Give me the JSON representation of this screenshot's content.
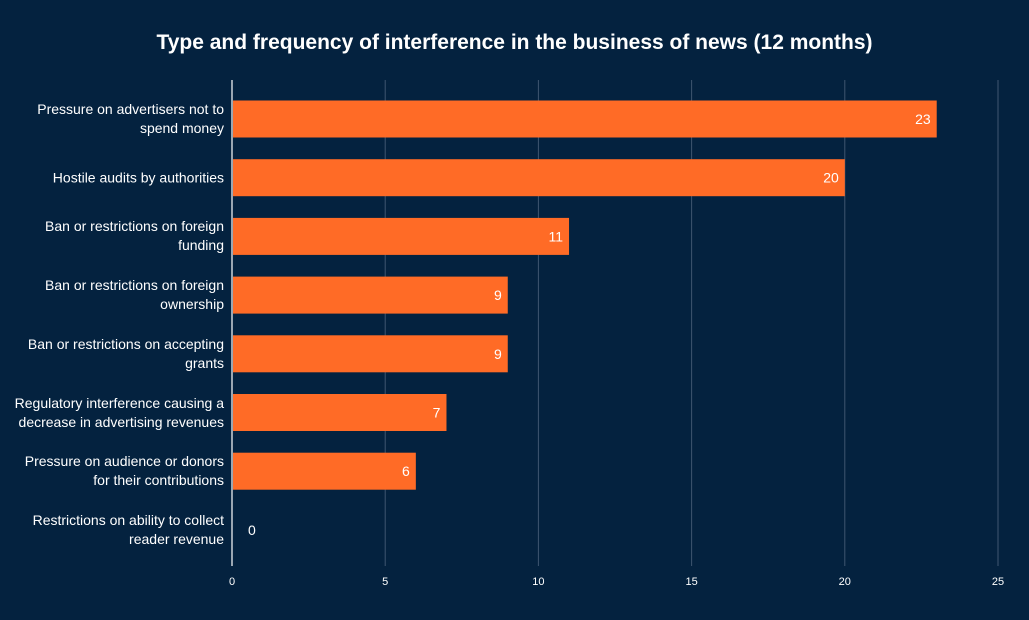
{
  "chart_data": {
    "type": "bar",
    "orientation": "horizontal",
    "title": "Type and frequency of interference in the business of news (12 months)",
    "xlabel": "",
    "ylabel": "",
    "xlim": [
      0,
      25
    ],
    "x_ticks": [
      0,
      5,
      10,
      15,
      20,
      25
    ],
    "grid": true,
    "categories": [
      "Pressure on advertisers not to spend money",
      "Hostile audits by authorities",
      "Ban or restrictions on foreign funding",
      "Ban or restrictions on foreign ownership",
      "Ban or restrictions on accepting grants",
      "Regulatory interference causing a decrease in advertising revenues",
      "Pressure on audience or donors for their contributions",
      "Restrictions on ability to collect reader revenue"
    ],
    "values": [
      23,
      20,
      11,
      9,
      9,
      7,
      6,
      0
    ],
    "colors": {
      "background": "#04223f",
      "bar": "#ff6b26",
      "gridline": "#3f5670",
      "axis": "#ffffff",
      "text": "#ffffff"
    }
  }
}
